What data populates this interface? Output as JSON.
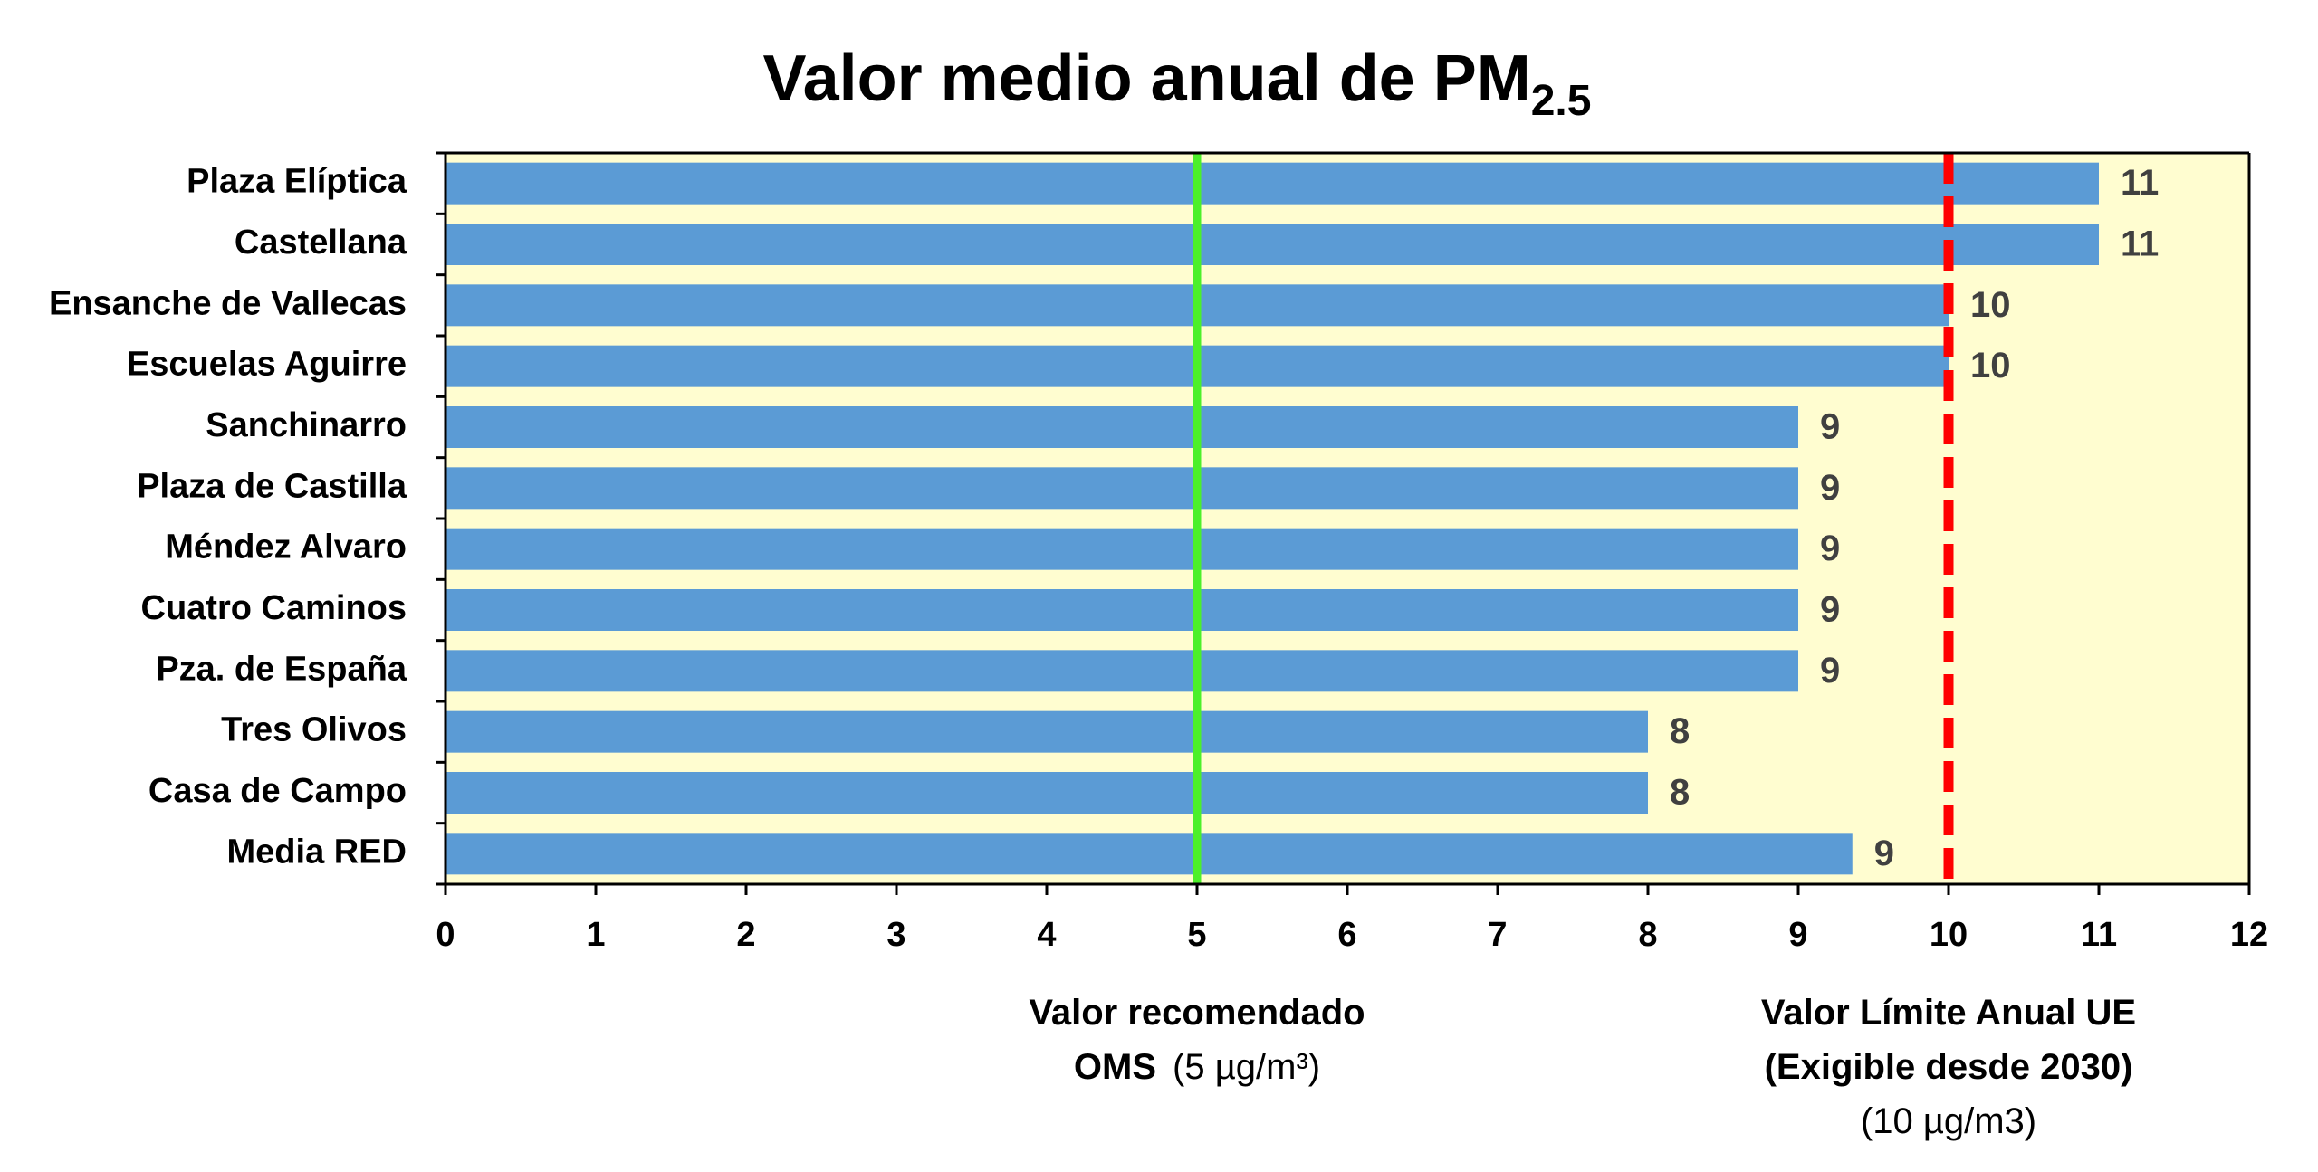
{
  "chart_data": {
    "type": "bar",
    "orientation": "horizontal",
    "title": "Valor medio anual de PM",
    "title_subscript": "2.5",
    "categories": [
      "Plaza Elíptica",
      "Castellana",
      "Ensanche de Vallecas",
      "Escuelas Aguirre",
      "Sanchinarro",
      "Plaza de Castilla",
      "Méndez Alvaro",
      "Cuatro Caminos",
      "Pza. de España",
      "Tres Olivos",
      "Casa de Campo",
      "Media RED"
    ],
    "values": [
      11,
      11,
      10,
      10,
      9,
      9,
      9,
      9,
      9,
      8,
      8,
      9.36
    ],
    "value_labels": [
      "11",
      "11",
      "10",
      "10",
      "9",
      "9",
      "9",
      "9",
      "9",
      "8",
      "8",
      "9"
    ],
    "color": "#5b9bd5",
    "plot_background": "#fffdd0",
    "xlim": [
      0,
      12
    ],
    "xticks": [
      0,
      1,
      2,
      3,
      4,
      5,
      6,
      7,
      8,
      9,
      10,
      11,
      12
    ],
    "reference_lines": [
      {
        "value": 5,
        "color": "#4cf02a",
        "style": "solid",
        "label_lines": [
          [
            {
              "text": "Valor recomendado",
              "bold": true
            }
          ],
          [
            {
              "text": "OMS",
              "bold": true
            },
            {
              "text": "(5 µg/m³)",
              "bold": false
            }
          ]
        ]
      },
      {
        "value": 10,
        "color": "#ff0000",
        "style": "dashed",
        "label_lines": [
          [
            {
              "text": "Valor Límite Anual UE",
              "bold": true
            }
          ],
          [
            {
              "text": "(Exigible desde 2030)",
              "bold": true
            }
          ],
          [
            {
              "text": "(10 µg/m3)",
              "bold": false
            }
          ]
        ]
      }
    ]
  }
}
